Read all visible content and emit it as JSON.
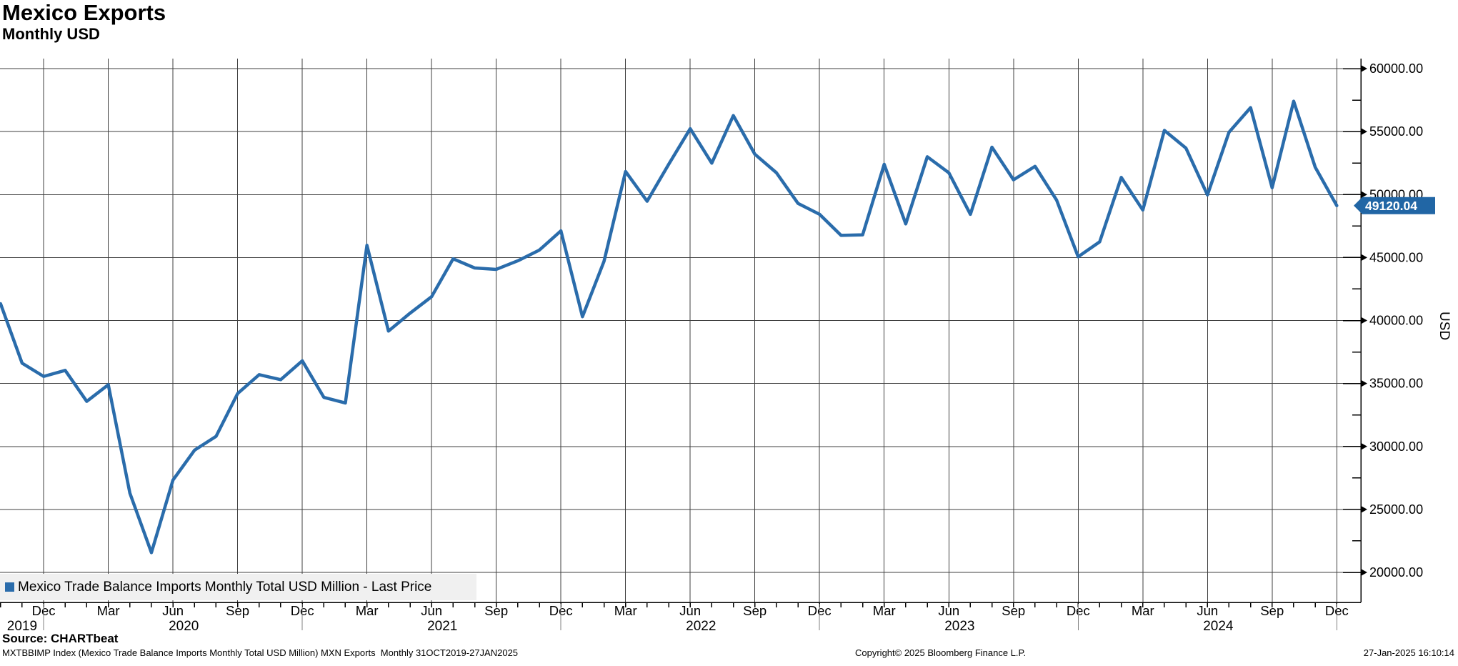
{
  "header": {
    "title": "Mexico Exports",
    "subtitle": "Monthly USD"
  },
  "legend": {
    "label": "Mexico Trade Balance Imports Monthly Total USD Million - Last Price",
    "marker_color": "#2a6cab"
  },
  "last_price": {
    "value": "49120.04",
    "box_color": "#2166a5"
  },
  "y_axis": {
    "title": "USD",
    "tick_labels": [
      "60000.00",
      "55000.00",
      "50000.00",
      "45000.00",
      "40000.00",
      "35000.00",
      "30000.00",
      "25000.00",
      "20000.00"
    ]
  },
  "x_axis": {
    "tick_labels": [
      "Dec",
      "Mar",
      "Jun",
      "Sep",
      "Dec",
      "Mar",
      "Jun",
      "Sep",
      "Dec",
      "Mar",
      "Jun",
      "Sep",
      "Dec",
      "Mar",
      "Jun",
      "Sep",
      "Dec",
      "Mar",
      "Jun",
      "Sep",
      "Dec"
    ],
    "year_labels": [
      "2019",
      "2020",
      "2021",
      "2022",
      "2023",
      "2024"
    ]
  },
  "source": {
    "label": "Source: CHARTbeat"
  },
  "footer": {
    "left": "MXTBBIMP Index (Mexico Trade Balance Imports Monthly Total USD Million) MXN Exports  Monthly 31OCT2019-27JAN2025",
    "center": "Copyright© 2025 Bloomberg Finance L.P.",
    "right": "27-Jan-2025 16:10:14"
  },
  "chart_data": {
    "type": "line",
    "title": "Mexico Exports",
    "subtitle": "Monthly USD",
    "ylabel": "USD",
    "ylim": [
      17600,
      60650
    ],
    "yticks": [
      20000,
      25000,
      30000,
      35000,
      40000,
      45000,
      50000,
      55000,
      60000
    ],
    "grid": true,
    "legend_position": "bottom-left",
    "last_price": 49120.04,
    "x": [
      "2019-10",
      "2019-11",
      "2019-12",
      "2020-01",
      "2020-02",
      "2020-03",
      "2020-04",
      "2020-05",
      "2020-06",
      "2020-07",
      "2020-08",
      "2020-09",
      "2020-10",
      "2020-11",
      "2020-12",
      "2021-01",
      "2021-02",
      "2021-03",
      "2021-04",
      "2021-05",
      "2021-06",
      "2021-07",
      "2021-08",
      "2021-09",
      "2021-10",
      "2021-11",
      "2021-12",
      "2022-01",
      "2022-02",
      "2022-03",
      "2022-04",
      "2022-05",
      "2022-06",
      "2022-07",
      "2022-08",
      "2022-09",
      "2022-10",
      "2022-11",
      "2022-12",
      "2023-01",
      "2023-02",
      "2023-03",
      "2023-04",
      "2023-05",
      "2023-06",
      "2023-07",
      "2023-08",
      "2023-09",
      "2023-10",
      "2023-11",
      "2023-12",
      "2024-01",
      "2024-02",
      "2024-03",
      "2024-04",
      "2024-05",
      "2024-06",
      "2024-07",
      "2024-08",
      "2024-09",
      "2024-10",
      "2024-11",
      "2024-12"
    ],
    "series": [
      {
        "name": "Mexico Trade Balance Imports Monthly Total USD Million - Last Price",
        "color": "#2a6cab",
        "values": [
          41330,
          36610,
          35560,
          36040,
          33580,
          34900,
          26300,
          21570,
          27330,
          29700,
          30800,
          34200,
          35700,
          35300,
          36800,
          33900,
          33450,
          45970,
          39160,
          40580,
          41890,
          44900,
          44170,
          44060,
          44740,
          45590,
          47120,
          40300,
          44700,
          51830,
          49470,
          52400,
          55230,
          52490,
          56270,
          53200,
          51730,
          49300,
          48430,
          46760,
          46800,
          52400,
          47670,
          53000,
          51730,
          48430,
          53760,
          51170,
          52240,
          49560,
          45060,
          46250,
          51360,
          48770,
          55090,
          53690,
          49970,
          54950,
          56900,
          50540,
          57410,
          52170,
          49120.04
        ]
      }
    ]
  }
}
